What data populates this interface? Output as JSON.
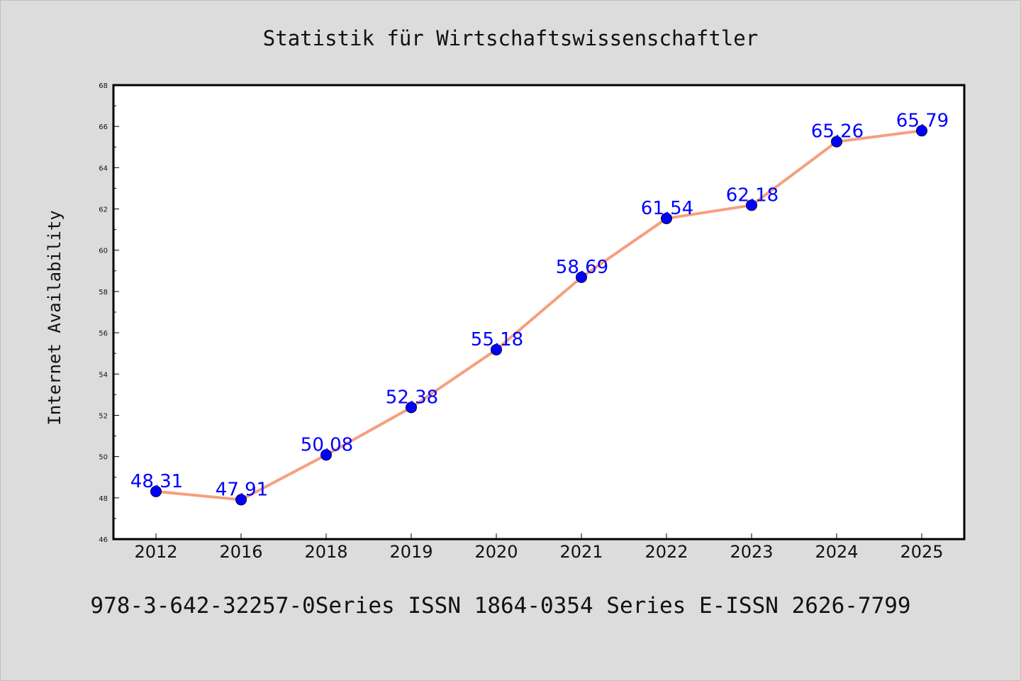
{
  "chart_data": {
    "type": "line",
    "title": "Statistik für Wirtschaftswissenschaftler",
    "xlabel": "",
    "ylabel": "Internet Availability",
    "categories": [
      "2012",
      "2016",
      "2018",
      "2019",
      "2020",
      "2021",
      "2022",
      "2023",
      "2024",
      "2025"
    ],
    "series": [
      {
        "values": [
          48.31,
          47.91,
          50.08,
          52.38,
          55.18,
          58.69,
          61.54,
          62.18,
          65.26,
          65.79
        ],
        "data_labels": [
          "48.31",
          "47.91",
          "50.08",
          "52.38",
          "55.18",
          "58.69",
          "61.54",
          "62.18",
          "65.26",
          "65.79"
        ]
      }
    ],
    "ylim": [
      46,
      68
    ],
    "y_ticks": [
      "46",
      "48",
      "50",
      "52",
      "54",
      "56",
      "58",
      "60",
      "62",
      "64",
      "66",
      "68"
    ],
    "grid": false,
    "colors": {
      "line": "#f4a07e",
      "marker": "#0000ff",
      "data_label": "#0000ff",
      "background": "#dcdcdc",
      "plot_background": "#ffffff"
    }
  },
  "footer": "978-3-642-32257-0Series ISSN 1864-0354 Series E-ISSN 2626-7799"
}
